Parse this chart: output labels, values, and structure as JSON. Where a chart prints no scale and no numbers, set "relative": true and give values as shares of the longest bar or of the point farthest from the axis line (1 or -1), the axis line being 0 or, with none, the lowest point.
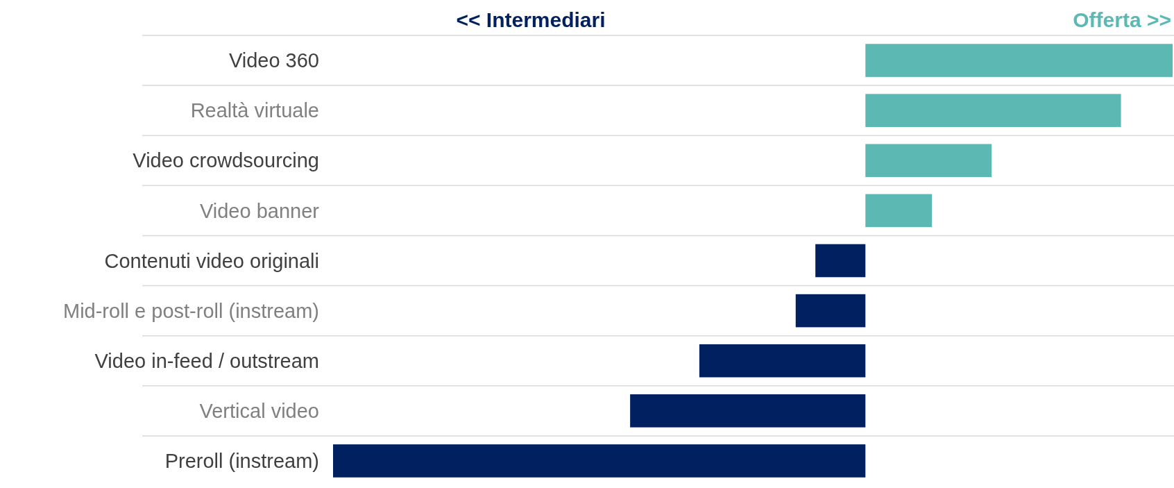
{
  "chart_data": {
    "type": "bar",
    "orientation": "horizontal",
    "relative": true,
    "grid": "y",
    "categories": [
      "Video 360",
      "Realtà virtuale",
      "Video crowdsourcing",
      "Video banner",
      "Contenuti video originali",
      "Mid-roll e post-roll (instream)",
      "Video in-feed / outstream",
      "Vertical video",
      "Preroll (instream)"
    ],
    "values": [
      0.577,
      0.48,
      0.237,
      0.125,
      -0.094,
      -0.131,
      -0.312,
      -0.442,
      -1
    ],
    "colors": [
      "#5bb8b2",
      "#5bb8b2",
      "#5bb8b2",
      "#5bb8b2",
      "#00205f",
      "#00205f",
      "#00205f",
      "#00205f",
      "#00205f"
    ],
    "annotations": [
      "<< Intermediari",
      "Offerta >>"
    ]
  }
}
